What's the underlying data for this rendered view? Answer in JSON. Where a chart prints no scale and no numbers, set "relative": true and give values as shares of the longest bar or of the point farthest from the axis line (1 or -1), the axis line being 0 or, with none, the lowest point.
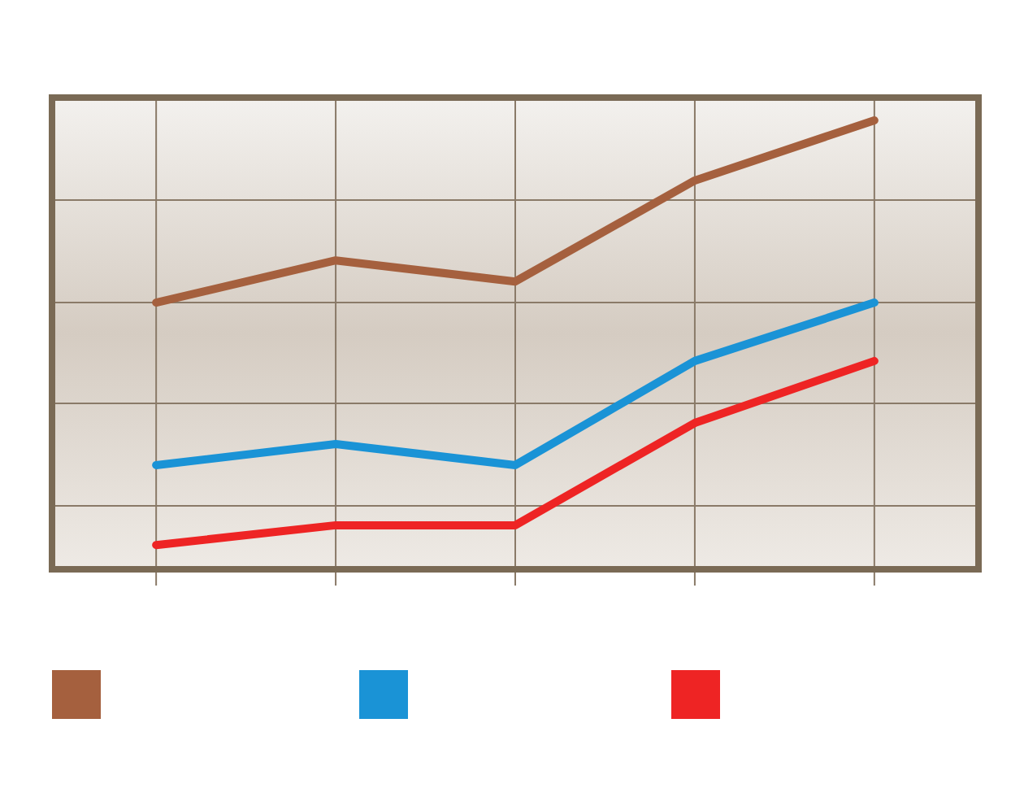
{
  "chart_data": {
    "type": "line",
    "relative": true,
    "categories": [
      null,
      null,
      null,
      null,
      null
    ],
    "series": [
      {
        "color": "#a5603e",
        "values": [
          0.594,
          0.688,
          0.641,
          0.866,
          1
        ]
      },
      {
        "color": "#1a93d6",
        "values": [
          0.232,
          0.279,
          0.232,
          0.464,
          0.594
        ]
      },
      {
        "color": "#ee2424",
        "values": [
          0.054,
          0.098,
          0.098,
          0.326,
          0.464
        ]
      }
    ],
    "grid": true,
    "line_style": "solid"
  }
}
